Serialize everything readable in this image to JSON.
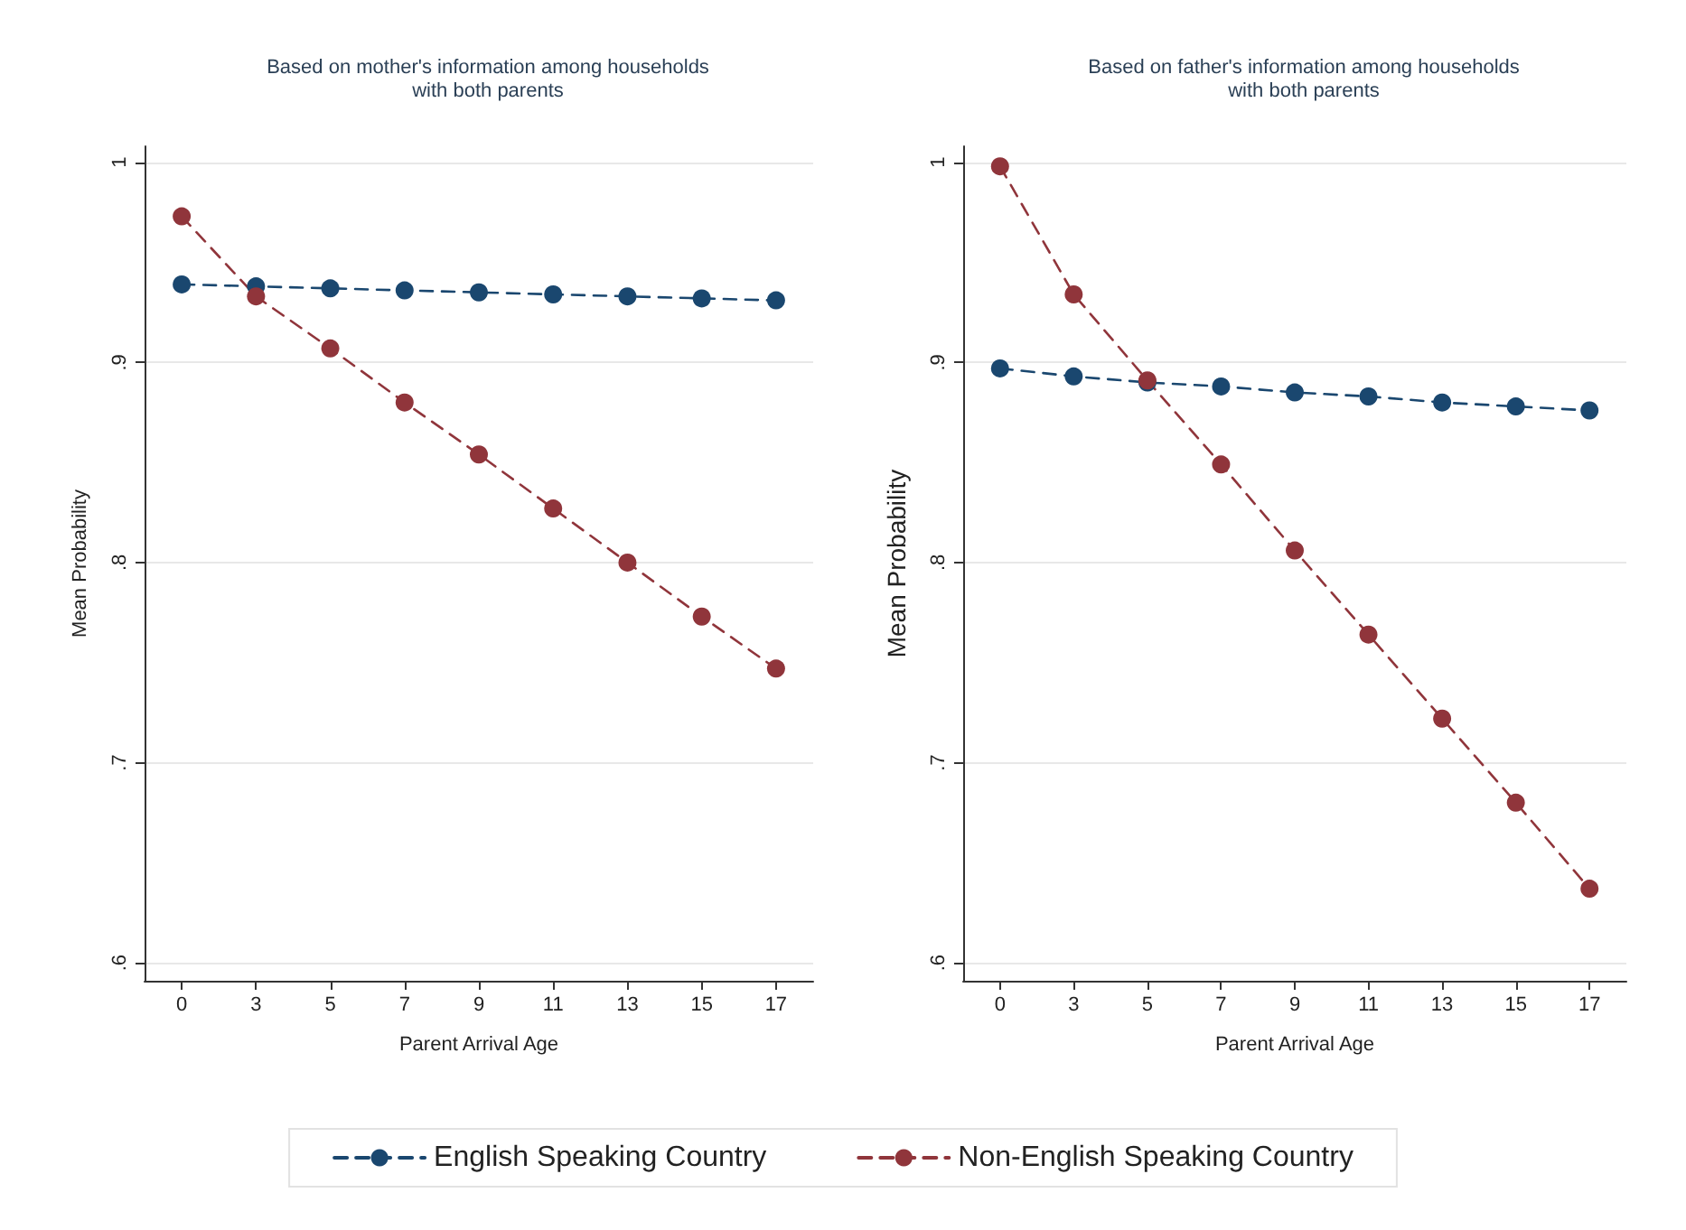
{
  "chart_data": [
    {
      "type": "line",
      "title": "Based on mother's information among households\nwith both parents",
      "xlabel": "Parent Arrival Age",
      "ylabel": "Mean Probability",
      "categories": [
        "0",
        "3",
        "5",
        "7",
        "9",
        "11",
        "13",
        "15",
        "17"
      ],
      "series": [
        {
          "name": "English Speaking Country",
          "color": "#1a476f",
          "values": [
            0.939,
            0.938,
            0.937,
            0.936,
            0.935,
            0.934,
            0.933,
            0.932,
            0.931
          ]
        },
        {
          "name": "Non-English Speaking Country",
          "color": "#90353b",
          "values": [
            0.973,
            0.933,
            0.907,
            0.88,
            0.854,
            0.827,
            0.8,
            0.773,
            0.747
          ]
        }
      ],
      "ylim": [
        0.591,
        1.008
      ],
      "yticks": [
        {
          "value": 0.6,
          "label": ".6"
        },
        {
          "value": 0.7,
          "label": ".7"
        },
        {
          "value": 0.8,
          "label": ".8"
        },
        {
          "value": 0.9,
          "label": ".9"
        },
        {
          "value": 1,
          "label": "1"
        }
      ],
      "grid": "y",
      "legend": "bottom",
      "marker": "circle",
      "line_style": "dashed"
    },
    {
      "type": "line",
      "title": "Based on father's information among households\nwith both parents",
      "xlabel": "Parent Arrival Age",
      "ylabel": "Mean Probability",
      "categories": [
        "0",
        "3",
        "5",
        "7",
        "9",
        "11",
        "13",
        "15",
        "17"
      ],
      "series": [
        {
          "color": "#1a476f",
          "values": [
            0.897,
            0.893,
            0.89,
            0.888,
            0.885,
            0.883,
            0.88,
            0.878,
            0.876
          ]
        },
        {
          "color": "#90353b",
          "values": [
            0.998,
            0.934,
            0.891,
            0.849,
            0.806,
            0.764,
            0.722,
            0.68,
            0.637
          ]
        }
      ],
      "ylim": [
        0.591,
        1.008
      ],
      "yticks": [
        {
          "value": 0.6,
          "label": ".6"
        },
        {
          "value": 0.7,
          "label": ".7"
        },
        {
          "value": 0.8,
          "label": ".8"
        },
        {
          "value": 0.9,
          "label": ".9"
        },
        {
          "value": 1,
          "label": "1"
        }
      ],
      "grid": "y",
      "marker": "circle",
      "line_style": "dashed"
    }
  ]
}
